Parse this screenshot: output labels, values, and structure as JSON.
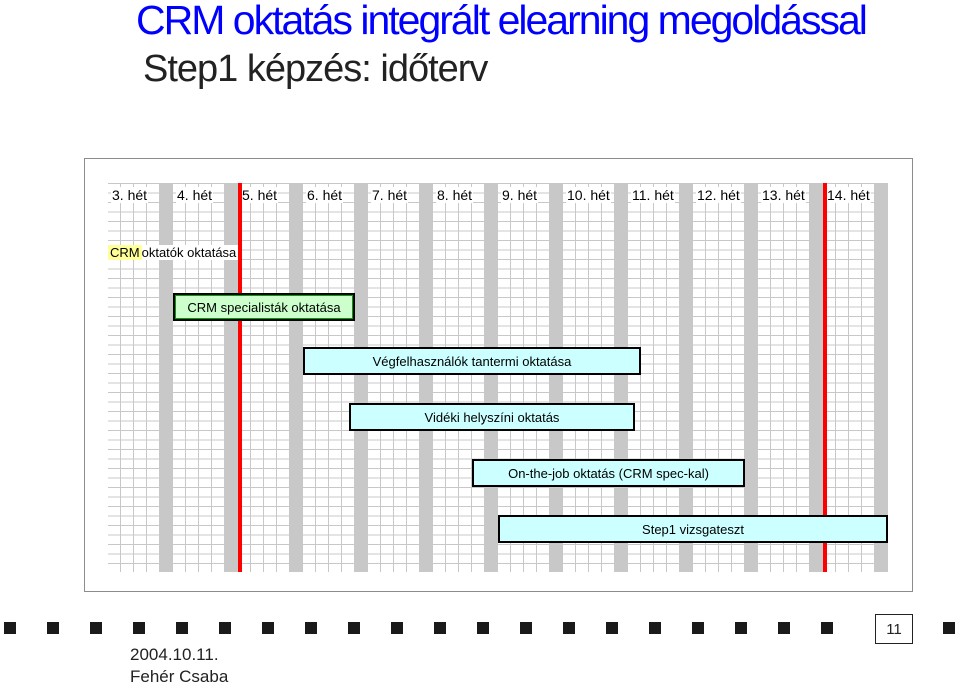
{
  "slide": {
    "title": "CRM oktatás integrált elearning megoldással",
    "subtitle": "Step1 képzés: időterv",
    "date": "2004.10.11.",
    "author": "Fehér Csaba",
    "page_number": "11"
  },
  "gantt": {
    "weeks": [
      "3. hét",
      "4. hét",
      "5. hét",
      "6. hét",
      "7. hét",
      "8. hét",
      "9. hét",
      "10. hét",
      "11. hét",
      "12. hét",
      "13. hét",
      "14. hét"
    ],
    "tasks": [
      {
        "label_highlight": "CRM",
        "label_rest": " oktatók oktatása",
        "start_week": 3.0,
        "end_week": 3.3,
        "style": "plain"
      },
      {
        "label": "CRM specialisták oktatása",
        "start_week": 4.0,
        "end_week": 6.8,
        "style": "green"
      },
      {
        "label": "Végfelhasználók tantermi oktatása",
        "start_week": 6.0,
        "end_week": 11.2,
        "style": "cyan"
      },
      {
        "label": "Vidéki helyszíni oktatás",
        "start_week": 6.7,
        "end_week": 11.1,
        "style": "cyan"
      },
      {
        "label": "On-the-job oktatás (CRM spec-kal)",
        "start_week": 8.6,
        "end_week": 12.8,
        "style": "cyan"
      },
      {
        "label": "Step1 vizsgateszt",
        "start_week": 9.0,
        "end_week": 15.0,
        "style": "cyan"
      }
    ],
    "milestones_week": [
      5.0,
      14.0
    ],
    "colors": {
      "bar_fill": "#ccffff",
      "green_bar": "#ccffcc",
      "milestone": "#ff0000",
      "highlight": "#ffff99",
      "title": "#0000ff"
    }
  }
}
